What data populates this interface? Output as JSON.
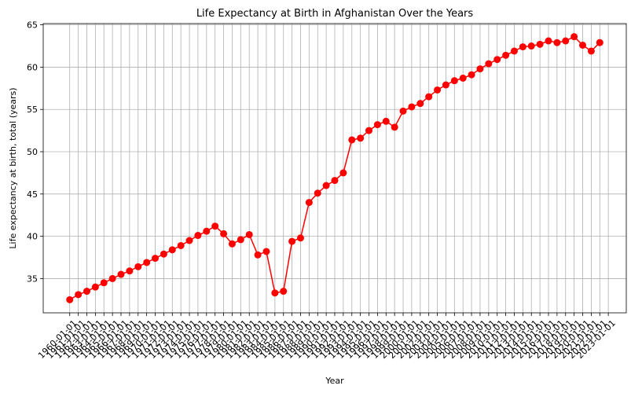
{
  "chart_data": {
    "type": "line",
    "title": "Life Expectancy at Birth in Afghanistan Over the Years",
    "x_label": "Year",
    "y_label": "Life expectancy at birth, total (years)",
    "color": "#ff0000",
    "grid": true,
    "x": [
      "1960-01-01",
      "1961-01-01",
      "1962-01-01",
      "1963-01-01",
      "1964-01-01",
      "1965-01-01",
      "1966-01-01",
      "1967-01-01",
      "1968-01-01",
      "1969-01-01",
      "1970-01-01",
      "1971-01-01",
      "1972-01-01",
      "1973-01-01",
      "1974-01-01",
      "1975-01-01",
      "1976-01-01",
      "1977-01-01",
      "1978-01-01",
      "1979-01-01",
      "1980-01-01",
      "1981-01-01",
      "1982-01-01",
      "1983-01-01",
      "1984-01-01",
      "1985-01-01",
      "1986-01-01",
      "1987-01-01",
      "1988-01-01",
      "1989-01-01",
      "1990-01-01",
      "1991-01-01",
      "1992-01-01",
      "1993-01-01",
      "1994-01-01",
      "1995-01-01",
      "1996-01-01",
      "1997-01-01",
      "1998-01-01",
      "1999-01-01",
      "2000-01-01",
      "2001-01-01",
      "2002-01-01",
      "2003-01-01",
      "2004-01-01",
      "2005-01-01",
      "2006-01-01",
      "2007-01-01",
      "2008-01-01",
      "2009-01-01",
      "2010-01-01",
      "2011-01-01",
      "2012-01-01",
      "2013-01-01",
      "2014-01-01",
      "2015-01-01",
      "2016-01-01",
      "2017-01-01",
      "2018-01-01",
      "2019-01-01",
      "2020-01-01",
      "2021-01-01",
      "2022-01-01"
    ],
    "values": [
      32.5,
      33.1,
      33.5,
      34.0,
      34.5,
      35.0,
      35.5,
      35.9,
      36.4,
      36.9,
      37.4,
      37.9,
      38.4,
      38.9,
      39.5,
      40.1,
      40.6,
      41.2,
      40.3,
      39.1,
      39.6,
      40.2,
      37.8,
      38.2,
      33.3,
      33.5,
      39.4,
      39.8,
      44.0,
      45.1,
      46.0,
      46.6,
      47.5,
      51.4,
      51.6,
      52.5,
      53.2,
      53.6,
      52.9,
      54.8,
      55.3,
      55.7,
      56.5,
      57.3,
      57.9,
      58.4,
      58.7,
      59.1,
      59.8,
      60.4,
      60.9,
      61.4,
      61.9,
      62.4,
      62.5,
      62.7,
      63.1,
      62.9,
      63.1,
      63.6,
      62.6,
      61.9,
      62.9
    ],
    "xticks": [
      "1960-01-01",
      "1961-01-01",
      "1962-01-01",
      "1963-01-01",
      "1964-01-01",
      "1965-01-01",
      "1966-01-01",
      "1967-01-01",
      "1968-01-01",
      "1969-01-01",
      "1970-01-01",
      "1971-01-01",
      "1972-01-01",
      "1973-01-01",
      "1974-01-01",
      "1975-01-01",
      "1976-01-01",
      "1977-01-01",
      "1978-01-01",
      "1979-01-01",
      "1980-01-01",
      "1981-01-01",
      "1982-01-01",
      "1983-01-01",
      "1984-01-01",
      "1985-01-01",
      "1986-01-01",
      "1987-01-01",
      "1988-01-01",
      "1989-01-01",
      "1990-01-01",
      "1991-01-01",
      "1992-01-01",
      "1993-01-01",
      "1994-01-01",
      "1995-01-01",
      "1996-01-01",
      "1997-01-01",
      "1998-01-01",
      "1999-01-01",
      "2000-01-01",
      "2001-01-01",
      "2002-01-01",
      "2003-01-01",
      "2004-01-01",
      "2005-01-01",
      "2006-01-01",
      "2007-01-01",
      "2008-01-01",
      "2009-01-01",
      "2010-01-01",
      "2011-01-01",
      "2012-01-01",
      "2013-01-01",
      "2014-01-01",
      "2015-01-01",
      "2016-01-01",
      "2017-01-01",
      "2018-01-01",
      "2019-01-01",
      "2020-01-01",
      "2021-01-01",
      "2022-01-01",
      "2023-01-01"
    ],
    "ylim": [
      30.95,
      65.15
    ],
    "yticks": [
      35,
      40,
      45,
      50,
      55,
      60,
      65
    ]
  }
}
